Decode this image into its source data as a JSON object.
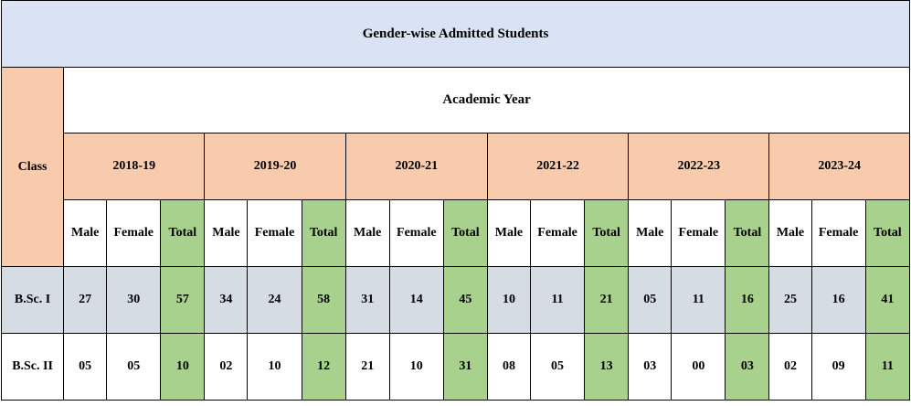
{
  "title": "Gender-wise Admitted Students",
  "academic_year_label": "Academic Year",
  "class_label": "Class",
  "sub_headers": {
    "male": "Male",
    "female": "Female",
    "total": "Total"
  },
  "years": [
    "2018-19",
    "2019-20",
    "2020-21",
    "2021-22",
    "2022-23",
    "2023-24"
  ],
  "rows": [
    {
      "class": "B.Sc. I",
      "values": [
        [
          "27",
          "30",
          "57"
        ],
        [
          "34",
          "24",
          "58"
        ],
        [
          "31",
          "14",
          "45"
        ],
        [
          "10",
          "11",
          "21"
        ],
        [
          "05",
          "11",
          "16"
        ],
        [
          "25",
          "16",
          "41"
        ]
      ]
    },
    {
      "class": "B.Sc. II",
      "values": [
        [
          "05",
          "05",
          "10"
        ],
        [
          "02",
          "10",
          "12"
        ],
        [
          "21",
          "10",
          "31"
        ],
        [
          "08",
          "05",
          "13"
        ],
        [
          "03",
          "00",
          "03"
        ],
        [
          "02",
          "09",
          "11"
        ]
      ]
    }
  ],
  "colors": {
    "title_bg": "#dae3f3",
    "header_bg": "#f8cbad",
    "total_bg": "#a9d18e",
    "row1_bg": "#d6dce4",
    "row2_bg": "#ffffff",
    "white": "#ffffff"
  }
}
